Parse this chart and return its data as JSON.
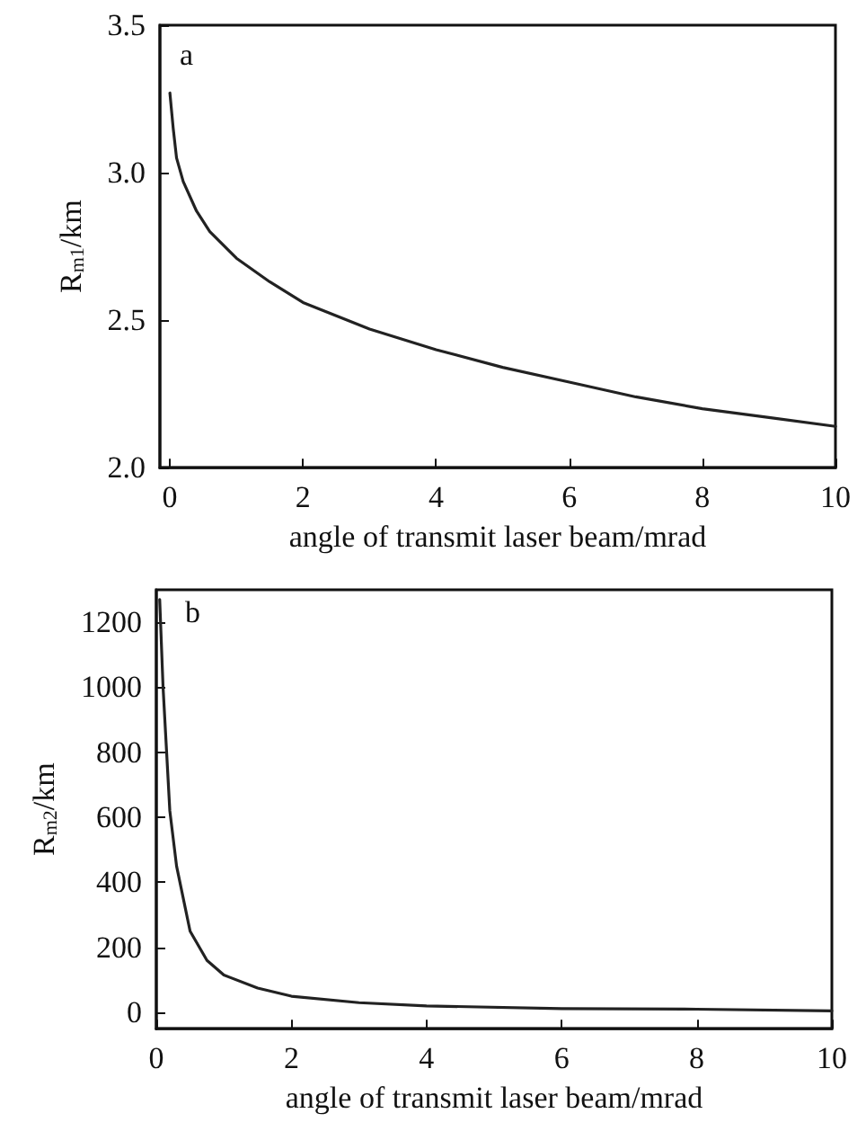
{
  "chart_data": [
    {
      "type": "line",
      "xlabel": "angle of transmit laser beam/mrad",
      "ylabel": "R$_{m1}$/km",
      "annotations": [
        "a"
      ],
      "x": [
        0,
        0.05,
        0.1,
        0.2,
        0.4,
        0.6,
        1,
        1.5,
        2,
        3,
        4,
        5,
        6,
        7,
        8,
        9,
        10
      ],
      "series": [
        {
          "color": "#222222",
          "values": [
            3.27,
            3.15,
            3.05,
            2.97,
            2.87,
            2.8,
            2.71,
            2.63,
            2.56,
            2.47,
            2.4,
            2.34,
            2.29,
            2.24,
            2.2,
            2.17,
            2.14
          ]
        }
      ],
      "xlim": [
        -0.15,
        10
      ],
      "xticks": [
        0,
        2,
        4,
        6,
        8,
        10
      ],
      "ylim": [
        2.0,
        3.5
      ],
      "yticks": [
        {
          "value": 2,
          "label": "2.0"
        },
        2.5,
        {
          "value": 3,
          "label": "3.0"
        },
        3.5
      ],
      "grid": false,
      "marker": "none",
      "line_style": "solid"
    },
    {
      "type": "line",
      "xlabel": "angle of transmit laser beam/mrad",
      "ylabel": "R$_{m2}$/km",
      "annotations": [
        "b"
      ],
      "x": [
        0.05,
        0.1,
        0.2,
        0.3,
        0.5,
        0.75,
        1,
        1.5,
        2,
        3,
        4,
        6,
        8,
        10
      ],
      "series": [
        {
          "color": "#222222",
          "values": [
            1270,
            1000,
            620,
            450,
            250,
            160,
            115,
            75,
            50,
            30,
            20,
            12,
            10,
            5
          ]
        }
      ],
      "xlim": [
        0,
        10
      ],
      "xticks": [
        0,
        2,
        4,
        6,
        8,
        10
      ],
      "ylim": [
        -50,
        1300
      ],
      "yticks": [
        0,
        200,
        400,
        600,
        800,
        1000,
        1200
      ],
      "grid": false,
      "marker": "none",
      "line_style": "solid"
    }
  ]
}
